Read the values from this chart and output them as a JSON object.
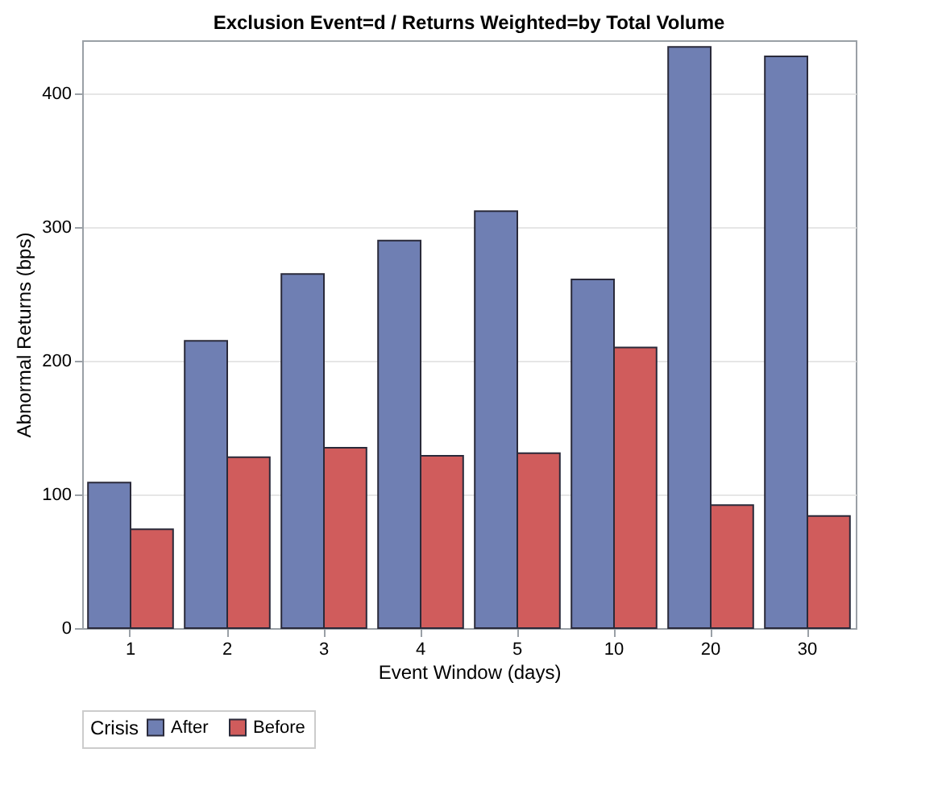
{
  "chart_data": {
    "type": "bar",
    "title": "Exclusion Event=d /  Returns Weighted=by Total Volume",
    "xlabel": "Event Window (days)",
    "ylabel": "Abnormal Returns (bps)",
    "legend_title": "Crisis",
    "categories": [
      "1",
      "2",
      "3",
      "4",
      "5",
      "10",
      "20",
      "30"
    ],
    "series": [
      {
        "name": "After",
        "color": "#6f7fb3",
        "values": [
          109,
          215,
          265,
          290,
          312,
          261,
          435,
          428
        ]
      },
      {
        "name": "Before",
        "color": "#d05c5c",
        "values": [
          74,
          128,
          135,
          129,
          131,
          210,
          92,
          84
        ]
      }
    ],
    "ylim": [
      0,
      440
    ],
    "yticks": [
      0,
      100,
      200,
      300,
      400
    ],
    "grid": "y",
    "legend": "bottom"
  }
}
